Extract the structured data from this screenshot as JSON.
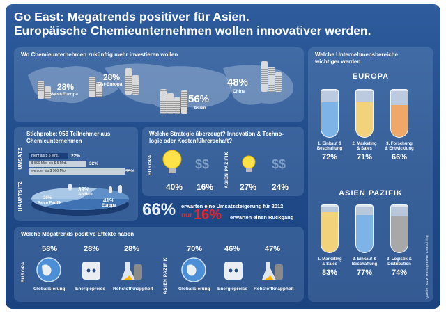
{
  "header": {
    "line1": "Go East: Megatrends positiver für Asien.",
    "line2": "Europäische Chemieunternehmen wollen innovativer werden."
  },
  "invest": {
    "title": "Wo Chemieunternehmen zukünftig mehr investieren wollen",
    "items": [
      {
        "pct": "28%",
        "label": "West-Europa"
      },
      {
        "pct": "28%",
        "label": "Ost-Europa"
      },
      {
        "pct": "56%",
        "label": "Asien"
      },
      {
        "pct": "48%",
        "label": "China"
      }
    ]
  },
  "sample": {
    "title1": "Stichprobe: 958 Teilnehmer aus",
    "title2": "Chemieunternehmen",
    "umsatz_label": "UMSATZ",
    "hauptsitz_label": "HAUPTSITZ",
    "bars": [
      {
        "label": "mehr als $ 5 Mrd.",
        "value": "22%",
        "pct": 22
      },
      {
        "label": "$ 500 Mio. bis $ 5 Mrd.",
        "value": "32%",
        "pct": 32
      },
      {
        "label": "weniger als $ 500 Mio.",
        "value": "55%",
        "pct": 55
      }
    ],
    "pie": [
      {
        "value": "39%",
        "label": "Andere"
      },
      {
        "value": "20%",
        "label": "Asien Pazifik"
      },
      {
        "value": "41%",
        "label": "Europa"
      }
    ]
  },
  "strategy": {
    "title1": "Welche Strategie überzeugt? Innovation & Techno-",
    "title2": "logie oder Kostenführerschaft?",
    "europa_label": "EUROPA",
    "asien_label1": "ASIEN",
    "asien_label2": "PAZIFIK",
    "values": [
      "40%",
      "16%",
      "27%",
      "24%"
    ]
  },
  "forecast": {
    "big": "66%",
    "text1": "erwarten eine Umsatzsteigerung für 2012",
    "prefix": "nur",
    "red": "16%",
    "text2": "erwarten einen Rückgang"
  },
  "megatrends": {
    "title": "Welche Megatrends positive Effekte haben",
    "europa_label": "EUROPA",
    "asien_label1": "ASIEN",
    "asien_label2": "PAZIFIK",
    "europa": [
      {
        "pct": "58%",
        "label": "Globalisierung"
      },
      {
        "pct": "28%",
        "label": "Energiepreise"
      },
      {
        "pct": "28%",
        "label": "Rohstoffknappheit"
      }
    ],
    "asien": [
      {
        "pct": "70%",
        "label": "Globalisierung"
      },
      {
        "pct": "46%",
        "label": "Energiepreise"
      },
      {
        "pct": "47%",
        "label": "Rohstoffknappheit"
      }
    ]
  },
  "areas": {
    "title1": "Welche Unternehmensbereiche",
    "title2": "wichtiger werden",
    "europa_heading": "EUROPA",
    "asien_heading": "ASIEN PAZIFIK",
    "europa": [
      {
        "l1": "1. Einkauf &",
        "l2": "Beschaffung",
        "pct": "72%",
        "level": 0.72,
        "color": "#7db3e6"
      },
      {
        "l1": "2. Marketing",
        "l2": "& Sales",
        "pct": "71%",
        "level": 0.71,
        "color": "#f2d27a"
      },
      {
        "l1": "3. Forschung",
        "l2": "& Entwicklung",
        "pct": "66%",
        "level": 0.66,
        "color": "#f0a868"
      }
    ],
    "asien": [
      {
        "l1": "1. Marketing",
        "l2": "& Sales",
        "pct": "83%",
        "level": 0.83,
        "color": "#f2d27a"
      },
      {
        "l1": "2. Einkauf &",
        "l2": "Beschaffung",
        "pct": "77%",
        "level": 0.77,
        "color": "#7db3e6"
      },
      {
        "l1": "3. Logistik &",
        "l2": "Distribution",
        "pct": "74%",
        "level": 0.74,
        "color": "#a8a8a8"
      }
    ]
  },
  "source": "Quelle: A&M Management Consulting",
  "colors": {
    "yellow": "#ffe14a",
    "red": "#e8262a",
    "bar": "#c8d2dc",
    "bar_dark": "#1c3f7a"
  }
}
